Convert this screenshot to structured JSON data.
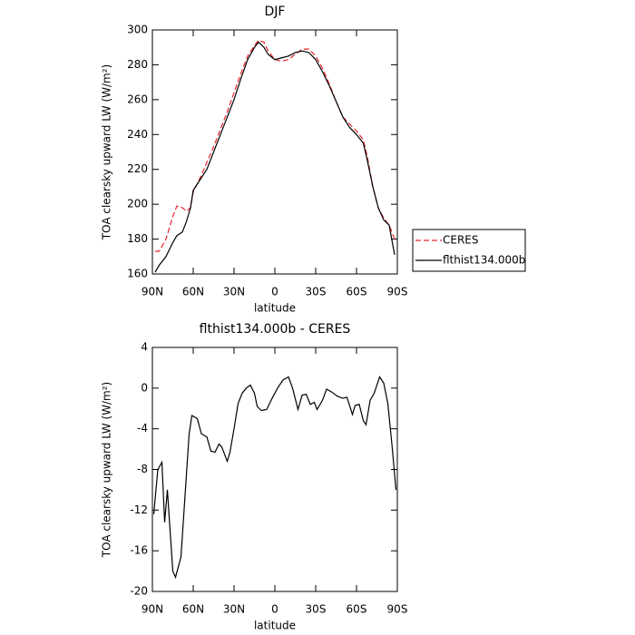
{
  "chart_data": [
    {
      "type": "line",
      "title": "DJF",
      "xlabel": "latitude",
      "ylabel": "TOA clearsky upward LW (W/m²)",
      "x": [
        88,
        85,
        80,
        75,
        72,
        68,
        65,
        62,
        60,
        55,
        50,
        45,
        40,
        35,
        30,
        25,
        20,
        15,
        12,
        8,
        5,
        0,
        -5,
        -10,
        -15,
        -20,
        -25,
        -30,
        -35,
        -40,
        -45,
        -50,
        -55,
        -60,
        -65,
        -68,
        -72,
        -76,
        -80,
        -84,
        -88
      ],
      "series": [
        {
          "name": "CERES",
          "color": "#e8242a",
          "style": "dashed",
          "values": [
            173,
            173,
            180,
            193,
            199,
            198,
            196,
            198,
            207,
            215,
            224,
            233,
            243,
            253,
            264,
            275,
            285,
            291,
            294,
            293,
            288,
            283,
            282,
            283,
            286,
            289,
            289,
            285,
            278,
            269,
            259,
            250,
            246,
            242,
            237,
            227,
            210,
            198,
            192,
            188,
            180
          ]
        },
        {
          "name": "flthist134.000b",
          "color": "#000000",
          "style": "solid",
          "values": [
            161,
            165,
            170,
            178,
            182,
            184,
            190,
            198,
            208,
            214,
            220,
            230,
            240,
            250,
            260,
            272,
            283,
            290,
            293,
            290,
            286,
            283,
            284,
            285,
            287,
            288,
            287,
            283,
            276,
            268,
            259,
            250,
            244,
            240,
            235,
            225,
            210,
            198,
            191,
            188,
            171
          ]
        }
      ],
      "xlim": [
        90,
        -90
      ],
      "xticks": [
        {
          "value": 90,
          "label": "90N"
        },
        {
          "value": 60,
          "label": "60N"
        },
        {
          "value": 30,
          "label": "30N"
        },
        0,
        {
          "value": -30,
          "label": "30S"
        },
        {
          "value": -60,
          "label": "60S"
        },
        {
          "value": -90,
          "label": "90S"
        }
      ],
      "ylim": [
        160,
        300
      ],
      "yticks": [
        160,
        180,
        200,
        220,
        240,
        260,
        280,
        300
      ],
      "legend_position": "right"
    },
    {
      "type": "line",
      "title": "flthist134.000b - CERES",
      "xlabel": "latitude",
      "ylabel": "TOA clearsky upward LW (W/m²)",
      "x": [
        89,
        86,
        83,
        81,
        79,
        75,
        73,
        69,
        63,
        61,
        57,
        54,
        50,
        47,
        44,
        41,
        39,
        35,
        33,
        30,
        27,
        24,
        21,
        18,
        15,
        13,
        10,
        6,
        2,
        -2,
        -6,
        -10,
        -13,
        -17,
        -20,
        -23,
        -26,
        -29,
        -31,
        -35,
        -38,
        -42,
        -46,
        -50,
        -53,
        -57,
        -59,
        -62,
        -65,
        -67,
        -70,
        -73,
        -77,
        -80,
        -83,
        -86,
        -89
      ],
      "values": [
        -12.4,
        -8,
        -7.3,
        -13.2,
        -10,
        -18,
        -18.6,
        -16.6,
        -4.5,
        -2.7,
        -3,
        -4.5,
        -4.8,
        -6.2,
        -6.3,
        -5.5,
        -5.8,
        -7.2,
        -6.3,
        -4,
        -1.5,
        -0.5,
        0,
        0.3,
        -0.5,
        -1.8,
        -2.2,
        -2.1,
        -1,
        0,
        0.8,
        1.1,
        0,
        -2.1,
        -0.7,
        -0.6,
        -1.6,
        -1.4,
        -2.1,
        -1.2,
        -0.1,
        -0.4,
        -0.8,
        -1,
        -0.9,
        -2.6,
        -1.7,
        -1.6,
        -3.2,
        -3.6,
        -1.2,
        -0.5,
        1.1,
        0.5,
        -1.5,
        -5.5,
        -10
      ],
      "color": "#000000",
      "xlim": [
        90,
        -90
      ],
      "xticks": [
        {
          "value": 90,
          "label": "90N"
        },
        {
          "value": 60,
          "label": "60N"
        },
        {
          "value": 30,
          "label": "30N"
        },
        0,
        {
          "value": -30,
          "label": "30S"
        },
        {
          "value": -60,
          "label": "60S"
        },
        {
          "value": -90,
          "label": "90S"
        }
      ],
      "ylim": [
        -20,
        4
      ],
      "yticks": [
        -20,
        -16,
        -12,
        -8,
        -4,
        0,
        4
      ]
    }
  ]
}
